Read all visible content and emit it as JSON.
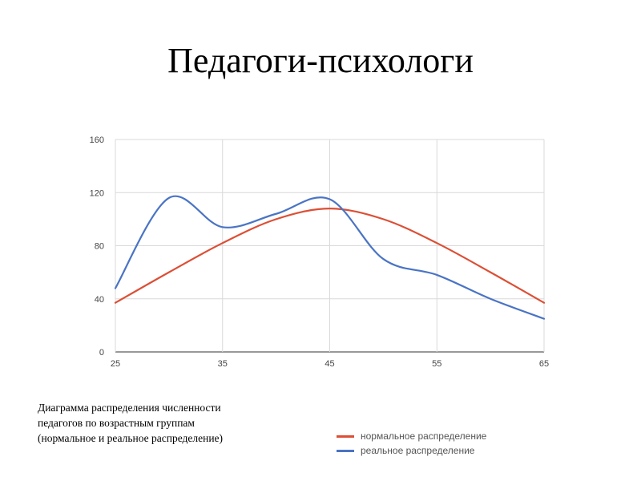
{
  "title": "Педагоги-психологи",
  "caption": {
    "lines": [
      "Диаграмма распределения численности",
      "педагогов по возрастным группам",
      "(нормальное и реальное распределение)"
    ]
  },
  "chart_data": {
    "type": "line",
    "xlabel": "",
    "ylabel": "",
    "xlim": [
      25,
      65
    ],
    "ylim": [
      0,
      160
    ],
    "x_ticks": [
      25,
      35,
      45,
      55,
      65
    ],
    "y_ticks": [
      0,
      40,
      80,
      120,
      160
    ],
    "grid": true,
    "legend_position": "bottom-right",
    "series": [
      {
        "name": "нормальное распределение",
        "color": "#dc4f35",
        "x": [
          25,
          30,
          35,
          40,
          45,
          50,
          55,
          60,
          65
        ],
        "values": [
          37,
          60,
          82,
          100,
          108,
          100,
          82,
          60,
          37
        ]
      },
      {
        "name": "реальное распределение",
        "color": "#4a74c4",
        "x": [
          25,
          30,
          35,
          40,
          45,
          50,
          55,
          60,
          65
        ],
        "values": [
          48,
          116,
          94,
          104,
          115,
          70,
          58,
          40,
          25
        ]
      }
    ]
  }
}
